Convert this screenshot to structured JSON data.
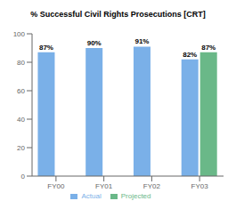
{
  "chart_data": {
    "type": "bar",
    "title": "% Successful Civil Rights Prosecutions [CRT]",
    "categories": [
      "FY00",
      "FY01",
      "FY02",
      "FY03"
    ],
    "series": [
      {
        "name": "Actual",
        "color": "#7ab0e8",
        "values": [
          87,
          90,
          91,
          82
        ],
        "value_labels": [
          "87%",
          "90%",
          "91%",
          "82%"
        ]
      },
      {
        "name": "Projected",
        "color": "#6ab888",
        "values": [
          null,
          null,
          null,
          87
        ],
        "value_labels": [
          null,
          null,
          null,
          "87%"
        ]
      }
    ],
    "ylim": [
      0,
      100
    ],
    "yticks": [
      0,
      20,
      40,
      60,
      80,
      100
    ],
    "grid": false,
    "legend": "bottom",
    "data_labels": true
  }
}
